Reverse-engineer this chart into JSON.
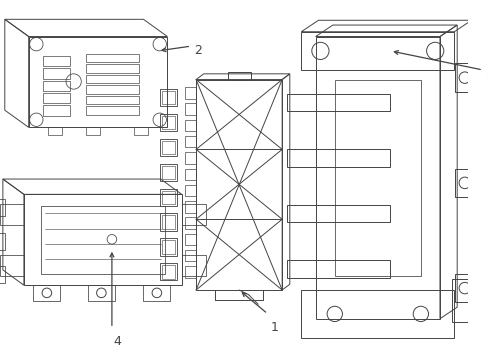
{
  "background_color": "#ffffff",
  "line_color": "#444444",
  "line_width": 0.7,
  "label_fontsize": 9,
  "figsize": [
    4.89,
    3.6
  ],
  "dpi": 100
}
